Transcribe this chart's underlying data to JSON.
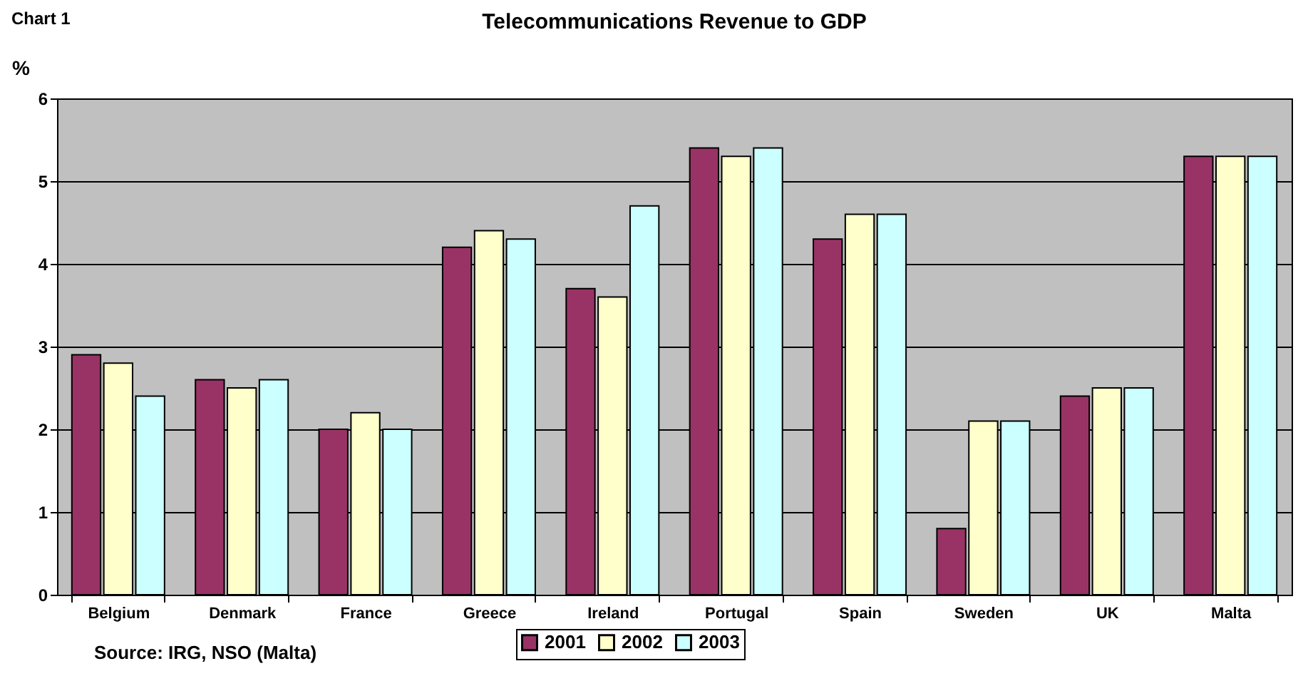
{
  "chart_data": {
    "type": "bar",
    "title": "Telecommunications Revenue to GDP",
    "ylabel": "%",
    "annotations": [
      "Chart 1",
      "Source:  IRG, NSO (Malta)"
    ],
    "categories": [
      "Belgium",
      "Denmark",
      "France",
      "Greece",
      "Ireland",
      "Portugal",
      "Spain",
      "Sweden",
      "UK",
      "Malta"
    ],
    "series": [
      {
        "name": "2001",
        "color": "#993366",
        "values": [
          2.9,
          2.6,
          2.0,
          4.2,
          3.7,
          5.4,
          4.3,
          0.8,
          2.4,
          5.3
        ]
      },
      {
        "name": "2002",
        "color": "#ffffcc",
        "values": [
          2.8,
          2.5,
          2.2,
          4.4,
          3.6,
          5.3,
          4.6,
          2.1,
          2.5,
          5.3
        ]
      },
      {
        "name": "2003",
        "color": "#ccffff",
        "values": [
          2.4,
          2.6,
          2.0,
          4.3,
          4.7,
          5.4,
          4.6,
          2.1,
          2.5,
          5.3
        ]
      }
    ],
    "ylim": [
      0,
      6
    ],
    "yticks": [
      0,
      1,
      2,
      3,
      4,
      5,
      6
    ],
    "grid": "y",
    "legend": "bottom"
  }
}
